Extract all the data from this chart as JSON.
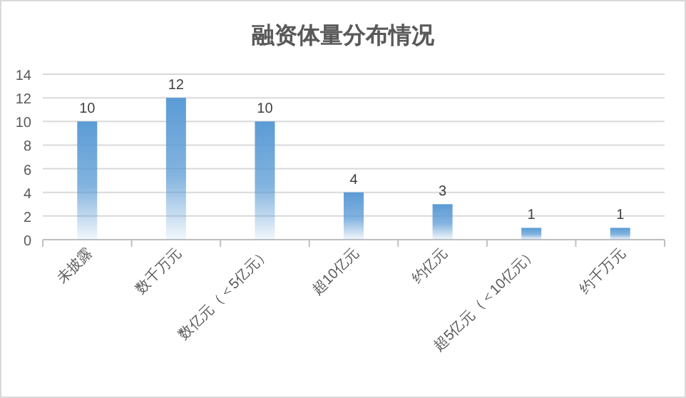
{
  "chart_data": {
    "type": "bar",
    "title": "融资体量分布情况",
    "categories": [
      "未披露",
      "数千万元",
      "数亿元（＜5亿元）",
      "超10亿元",
      "约亿元",
      "超5亿元（＜10亿元）",
      "约千万元"
    ],
    "values": [
      10,
      12,
      10,
      4,
      3,
      1,
      1
    ],
    "color": "#5b9bd5",
    "ylim": [
      0,
      14
    ],
    "yticks": [
      0,
      2,
      4,
      6,
      8,
      10,
      12,
      14
    ],
    "grid": "y",
    "data_labels": true
  }
}
